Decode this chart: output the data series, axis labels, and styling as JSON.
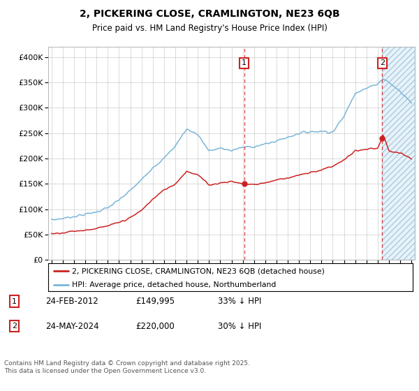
{
  "title1": "2, PICKERING CLOSE, CRAMLINGTON, NE23 6QB",
  "title2": "Price paid vs. HM Land Registry's House Price Index (HPI)",
  "ylim": [
    0,
    420000
  ],
  "yticks": [
    0,
    50000,
    100000,
    150000,
    200000,
    250000,
    300000,
    350000,
    400000
  ],
  "ytick_labels": [
    "£0",
    "£50K",
    "£100K",
    "£150K",
    "£200K",
    "£250K",
    "£300K",
    "£350K",
    "£400K"
  ],
  "xlim_min": 1994.7,
  "xlim_max": 2027.3,
  "hpi_color": "#7ab6d9",
  "price_color": "#cc2222",
  "vline_color": "#cc2222",
  "marker1_date": 2012.12,
  "marker2_date": 2024.4,
  "legend_price_label": "2, PICKERING CLOSE, CRAMLINGTON, NE23 6QB (detached house)",
  "legend_hpi_label": "HPI: Average price, detached house, Northumberland",
  "annotation1_num": "1",
  "annotation1_date": "24-FEB-2012",
  "annotation1_price": "£149,995",
  "annotation1_note": "33% ↓ HPI",
  "annotation2_num": "2",
  "annotation2_date": "24-MAY-2024",
  "annotation2_price": "£220,000",
  "annotation2_note": "30% ↓ HPI",
  "footer": "Contains HM Land Registry data © Crown copyright and database right 2025.\nThis data is licensed under the Open Government Licence v3.0.",
  "bg_color": "#ffffff",
  "grid_color": "#cccccc",
  "hpi_key_years": [
    1995,
    1996,
    1997,
    1998,
    1999,
    2000,
    2001,
    2002,
    2003,
    2004,
    2005,
    2006,
    2007,
    2008,
    2009,
    2010,
    2011,
    2012,
    2013,
    2014,
    2015,
    2016,
    2017,
    2018,
    2019,
    2020,
    2021,
    2022,
    2023,
    2024,
    2024.5,
    2025,
    2026,
    2027
  ],
  "hpi_key_vals": [
    79000,
    82000,
    86000,
    90000,
    95000,
    103000,
    118000,
    137000,
    158000,
    183000,
    200000,
    225000,
    258000,
    248000,
    215000,
    220000,
    216000,
    222000,
    224000,
    228000,
    235000,
    242000,
    250000,
    253000,
    254000,
    252000,
    283000,
    330000,
    338000,
    348000,
    358000,
    350000,
    332000,
    310000
  ],
  "price_key_years": [
    1995,
    1996,
    1997,
    1998,
    1999,
    2000,
    2001,
    2002,
    2003,
    2004,
    2005,
    2006,
    2007,
    2008,
    2009,
    2010,
    2011,
    2012,
    2013,
    2014,
    2015,
    2016,
    2017,
    2018,
    2019,
    2020,
    2021,
    2022,
    2023,
    2024,
    2024.5,
    2025,
    2026,
    2027
  ],
  "price_key_vals": [
    52000,
    54000,
    57000,
    59000,
    62000,
    67000,
    74000,
    83000,
    98000,
    120000,
    138000,
    150000,
    175000,
    168000,
    148000,
    152000,
    155000,
    150000,
    149000,
    152000,
    158000,
    162000,
    167000,
    172000,
    178000,
    185000,
    197000,
    215000,
    218000,
    220000,
    245000,
    215000,
    210000,
    200000
  ]
}
